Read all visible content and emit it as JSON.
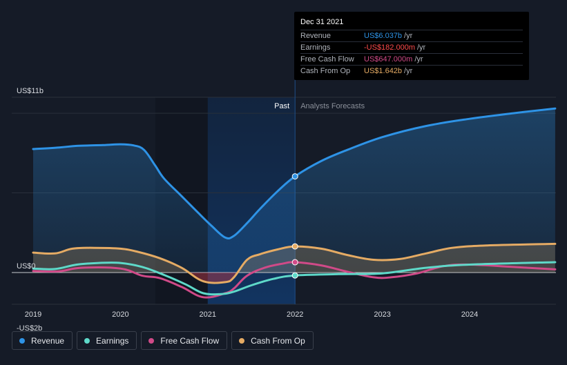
{
  "colors": {
    "background": "#151b27",
    "revenue": "#2e93e6",
    "earnings": "#5ed9c9",
    "free_cash_flow": "#d04a88",
    "cash_from_op": "#e5ab64",
    "grid": "#2a303b",
    "axis_text": "#d8dbe0",
    "highlight": "#0f2c52"
  },
  "tooltip": {
    "date": "Dec 31 2021",
    "rows": [
      {
        "label": "Revenue",
        "value": "US$6.037b",
        "unit": "/yr",
        "color": "#2e93e6"
      },
      {
        "label": "Earnings",
        "value": "-US$182.000m",
        "unit": "/yr",
        "color": "#ff4b4b"
      },
      {
        "label": "Free Cash Flow",
        "value": "US$647.000m",
        "unit": "/yr",
        "color": "#d04a88"
      },
      {
        "label": "Cash From Op",
        "value": "US$1.642b",
        "unit": "/yr",
        "color": "#e5ab64"
      }
    ]
  },
  "legend": {
    "items": [
      {
        "label": "Revenue",
        "color": "#2e93e6"
      },
      {
        "label": "Earnings",
        "color": "#5ed9c9"
      },
      {
        "label": "Free Cash Flow",
        "color": "#d04a88"
      },
      {
        "label": "Cash From Op",
        "color": "#e5ab64"
      }
    ]
  },
  "chart_data": {
    "type": "line",
    "title": "",
    "xlabel": "",
    "ylabel": "",
    "x_range": [
      2018.93,
      2024.98
    ],
    "ylim": [
      -2,
      11
    ],
    "x_ticks": [
      2019,
      2020,
      2021,
      2022,
      2023,
      2024
    ],
    "x_tick_labels": [
      "2019",
      "2020",
      "2021",
      "2022",
      "2023",
      "2024"
    ],
    "y_ticks": [
      {
        "value": 11,
        "label": "US$11b"
      },
      {
        "value": 0,
        "label": "US$0"
      },
      {
        "value": -2,
        "label": "-US$2b"
      }
    ],
    "grid_values": [
      11,
      10,
      5,
      0
    ],
    "past_label": "Past",
    "forecast_label": "Analysts Forecasts",
    "past_band": [
      2021.0,
      2022.0
    ],
    "dark_band": [
      2020.4,
      2021.0
    ],
    "divider_x": 2022.0,
    "series": [
      {
        "name": "Revenue",
        "color": "#2e93e6",
        "fill": true,
        "points": [
          [
            2019.0,
            7.75
          ],
          [
            2019.3,
            7.85
          ],
          [
            2019.5,
            7.95
          ],
          [
            2019.8,
            8.0
          ],
          [
            2020.0,
            8.05
          ],
          [
            2020.15,
            7.98
          ],
          [
            2020.27,
            7.7
          ],
          [
            2020.4,
            6.7
          ],
          [
            2020.5,
            5.9
          ],
          [
            2020.7,
            4.8
          ],
          [
            2020.9,
            3.7
          ],
          [
            2021.05,
            2.9
          ],
          [
            2021.2,
            2.2
          ],
          [
            2021.3,
            2.3
          ],
          [
            2021.45,
            3.1
          ],
          [
            2021.6,
            4.0
          ],
          [
            2021.8,
            5.1
          ],
          [
            2022.0,
            6.037
          ],
          [
            2022.3,
            7.0
          ],
          [
            2022.6,
            7.7
          ],
          [
            2023.0,
            8.5
          ],
          [
            2023.5,
            9.2
          ],
          [
            2024.0,
            9.65
          ],
          [
            2024.5,
            10.0
          ],
          [
            2024.98,
            10.3
          ]
        ]
      },
      {
        "name": "Cash From Op",
        "color": "#e5ab64",
        "fill": true,
        "points": [
          [
            2019.0,
            1.25
          ],
          [
            2019.25,
            1.2
          ],
          [
            2019.45,
            1.5
          ],
          [
            2019.7,
            1.55
          ],
          [
            2020.0,
            1.5
          ],
          [
            2020.2,
            1.3
          ],
          [
            2020.45,
            0.9
          ],
          [
            2020.7,
            0.3
          ],
          [
            2020.95,
            -0.55
          ],
          [
            2021.2,
            -0.6
          ],
          [
            2021.3,
            -0.3
          ],
          [
            2021.45,
            0.8
          ],
          [
            2021.6,
            1.15
          ],
          [
            2021.8,
            1.45
          ],
          [
            2022.0,
            1.642
          ],
          [
            2022.3,
            1.5
          ],
          [
            2022.6,
            1.1
          ],
          [
            2022.9,
            0.8
          ],
          [
            2023.2,
            0.85
          ],
          [
            2023.5,
            1.2
          ],
          [
            2023.8,
            1.55
          ],
          [
            2024.2,
            1.7
          ],
          [
            2024.98,
            1.8
          ]
        ]
      },
      {
        "name": "Free Cash Flow",
        "color": "#d04a88",
        "fill": false,
        "points": [
          [
            2019.0,
            0.1
          ],
          [
            2019.3,
            0.08
          ],
          [
            2019.55,
            0.3
          ],
          [
            2020.0,
            0.25
          ],
          [
            2020.25,
            -0.2
          ],
          [
            2020.45,
            -0.35
          ],
          [
            2020.7,
            -0.9
          ],
          [
            2020.95,
            -1.55
          ],
          [
            2021.2,
            -1.3
          ],
          [
            2021.3,
            -1.0
          ],
          [
            2021.45,
            -0.2
          ],
          [
            2021.65,
            0.3
          ],
          [
            2021.85,
            0.55
          ],
          [
            2022.0,
            0.647
          ],
          [
            2022.3,
            0.45
          ],
          [
            2022.6,
            0.05
          ],
          [
            2022.9,
            -0.3
          ],
          [
            2023.1,
            -0.3
          ],
          [
            2023.4,
            -0.05
          ],
          [
            2023.7,
            0.4
          ],
          [
            2024.0,
            0.5
          ],
          [
            2024.5,
            0.35
          ],
          [
            2024.98,
            0.2
          ]
        ]
      },
      {
        "name": "Earnings",
        "color": "#5ed9c9",
        "fill": false,
        "points": [
          [
            2019.0,
            0.25
          ],
          [
            2019.25,
            0.22
          ],
          [
            2019.5,
            0.5
          ],
          [
            2019.75,
            0.6
          ],
          [
            2020.0,
            0.6
          ],
          [
            2020.25,
            0.35
          ],
          [
            2020.5,
            -0.15
          ],
          [
            2020.75,
            -0.75
          ],
          [
            2020.95,
            -1.3
          ],
          [
            2021.15,
            -1.35
          ],
          [
            2021.3,
            -1.2
          ],
          [
            2021.5,
            -0.8
          ],
          [
            2021.75,
            -0.4
          ],
          [
            2022.0,
            -0.182
          ],
          [
            2022.5,
            -0.1
          ],
          [
            2023.0,
            -0.05
          ],
          [
            2023.5,
            0.3
          ],
          [
            2024.0,
            0.5
          ],
          [
            2024.98,
            0.65
          ]
        ]
      }
    ],
    "markers": [
      {
        "series": "Revenue",
        "x": 2022.0,
        "y": 6.037,
        "color": "#2e93e6"
      },
      {
        "series": "Cash From Op",
        "x": 2022.0,
        "y": 1.642,
        "color": "#e5ab64"
      },
      {
        "series": "Free Cash Flow",
        "x": 2022.0,
        "y": 0.647,
        "color": "#d04a88"
      },
      {
        "series": "Earnings",
        "x": 2022.0,
        "y": -0.182,
        "color": "#5ed9c9"
      }
    ]
  }
}
